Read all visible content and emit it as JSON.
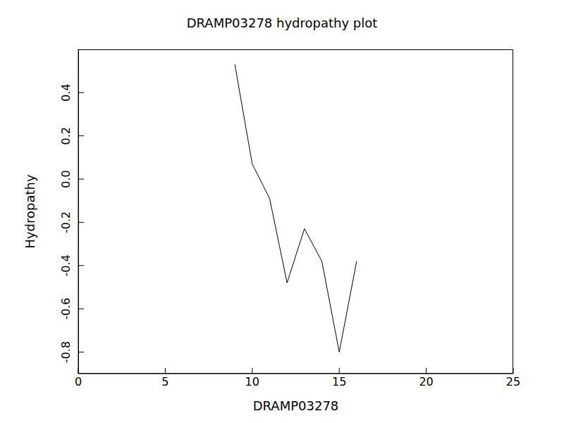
{
  "chart_data": {
    "type": "line",
    "title": "DRAMP03278 hydropathy plot",
    "x_label": "DRAMP03278",
    "y_label": "Hydropathy",
    "x": [
      9,
      10,
      11,
      12,
      13,
      14,
      15,
      16
    ],
    "values": [
      0.53,
      0.07,
      -0.09,
      -0.48,
      -0.23,
      -0.38,
      -0.8,
      -0.38
    ],
    "color": "#000000",
    "xlim": [
      0,
      25
    ],
    "xticks": [
      0,
      5,
      10,
      15,
      20,
      25
    ],
    "ylim": [
      -0.9,
      0.6
    ],
    "yticks": [
      -0.8,
      -0.6,
      -0.4,
      -0.2,
      {
        "value": 0,
        "label": "0.0"
      },
      0.2,
      0.4
    ],
    "grid": false
  }
}
